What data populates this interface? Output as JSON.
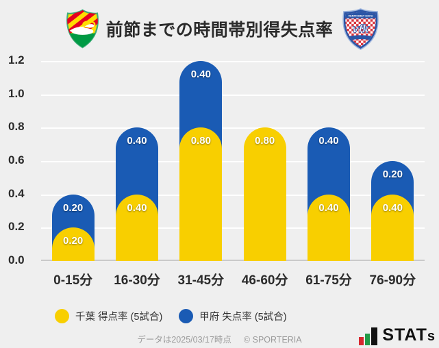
{
  "header": {
    "title": "前節までの時間帯別得失点率"
  },
  "icons": {
    "left_logo": {
      "name": "jef-united-chiba-crest"
    },
    "right_logo": {
      "name": "ventforet-kofu-crest",
      "band_text": "VENTFORET KOFU",
      "monogram": "vfk"
    },
    "brand_icon": {
      "name": "stats-bars-icon"
    }
  },
  "colors": {
    "background": "#EFEFEF",
    "chiba_yellow": "#F8CF00",
    "kofu_blue": "#1A5BB4",
    "gridline": "#FFFFFF",
    "baseline": "#C9C9C9",
    "brand_red": "#D7282F",
    "brand_green": "#239A47"
  },
  "chart_data": {
    "type": "bar",
    "stacked": true,
    "title": "前節までの時間帯別得失点率",
    "categories": [
      "0-15分",
      "16-30分",
      "31-45分",
      "46-60分",
      "61-75分",
      "76-90分"
    ],
    "series": [
      {
        "name": "千葉 得点率 (5試合)",
        "color": "#F8CF00",
        "values": [
          0.2,
          0.4,
          0.8,
          0.8,
          0.4,
          0.4
        ]
      },
      {
        "name": "甲府 失点率 (5試合)",
        "color": "#1A5BB4",
        "values": [
          0.2,
          0.4,
          0.4,
          0.0,
          0.4,
          0.2
        ]
      }
    ],
    "ylim": [
      0,
      1.2
    ],
    "yticks": [
      0.0,
      0.2,
      0.4,
      0.6,
      0.8,
      1.0,
      1.2
    ],
    "grid": true,
    "legend_position": "bottom",
    "value_label_format": "0.00"
  },
  "footer": {
    "note": "データは2025/03/17時点",
    "copyright": "© SPORTERIA",
    "brand_main": "STAT",
    "brand_small": "s"
  }
}
